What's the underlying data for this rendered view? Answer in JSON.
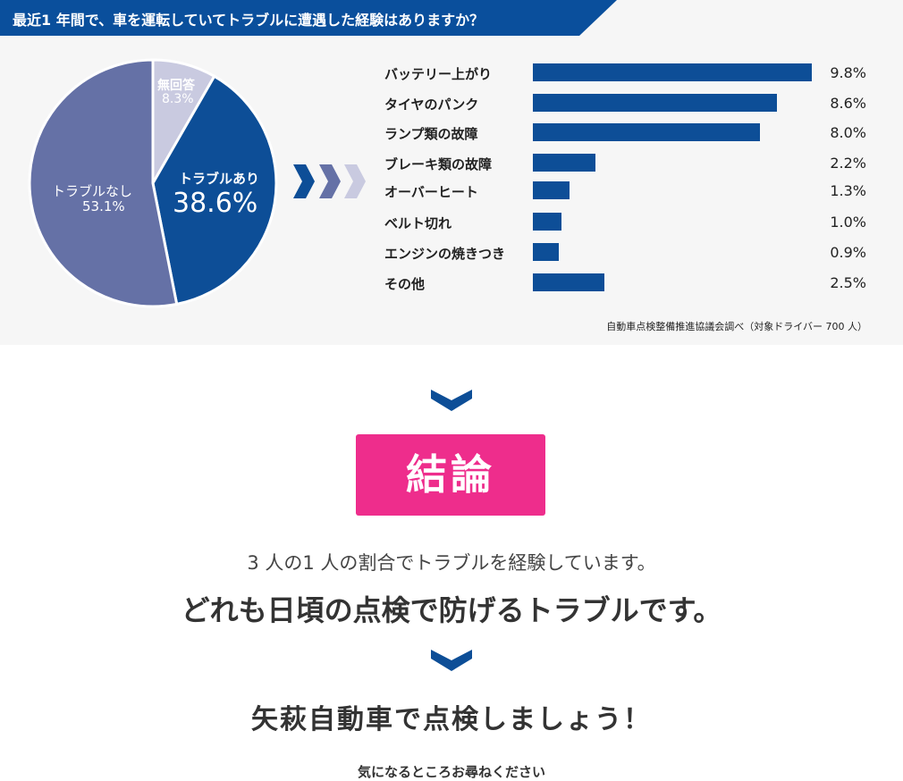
{
  "title": "最近1 年間で、車を運転していてトラブルに遭遇した経験はありますか？",
  "chart_data": [
    {
      "type": "pie",
      "slices": [
        {
          "label": "無回答",
          "value": 8.3,
          "display": "8.3%",
          "color": "#c9cae0"
        },
        {
          "label": "トラブルあり",
          "value": 38.6,
          "display": "38.6%",
          "color": "#0d4e97"
        },
        {
          "label": "トラブルなし",
          "value": 53.1,
          "display": "53.1%",
          "color": "#6571a6"
        }
      ]
    },
    {
      "type": "bar",
      "orientation": "horizontal",
      "color": "#0d4e97",
      "categories": [
        "バッテリー上がり",
        "タイヤのパンク",
        "ランプ類の故障",
        "ブレーキ類の故障",
        "オーバーヒート",
        "ベルト切れ",
        "エンジンの焼きつき",
        "その他"
      ],
      "values": [
        9.8,
        8.6,
        8.0,
        2.2,
        1.3,
        1.0,
        0.9,
        2.5
      ],
      "labels": [
        "9.8%",
        "8.6%",
        "8.0%",
        "2.2%",
        "1.3%",
        "1.0%",
        "0.9%",
        "2.5%"
      ]
    }
  ],
  "source": "自動車点検整備推進協議会調べ（対象ドライバー 700 人）",
  "conclusion": {
    "badge": "結論",
    "line1": "3 人の1 人の割合でトラブルを経験しています。",
    "line2": "どれも日頃の点検で防げるトラブルです。",
    "line3": "矢萩自動車で点検しましょう！",
    "line4": "気になるところお尋ねください"
  }
}
